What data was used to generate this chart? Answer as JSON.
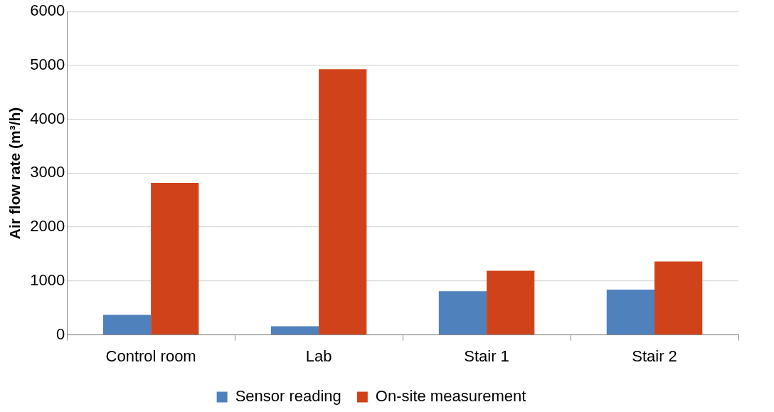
{
  "chart_data": {
    "type": "bar",
    "ylabel": "Air flow rate (m³/h)",
    "categories": [
      "Control room",
      "Lab",
      "Stair 1",
      "Stair 2"
    ],
    "series": [
      {
        "name": "Sensor reading",
        "color": "#4f81bd",
        "values": [
          370,
          160,
          810,
          840
        ]
      },
      {
        "name": "On-site measurement",
        "color": "#d0431a",
        "values": [
          2820,
          4930,
          1190,
          1360
        ]
      }
    ],
    "ylim": [
      0,
      6000
    ],
    "yticks": [
      0,
      1000,
      2000,
      3000,
      4000,
      5000,
      6000
    ],
    "grid": "y",
    "legend": "bottom"
  }
}
